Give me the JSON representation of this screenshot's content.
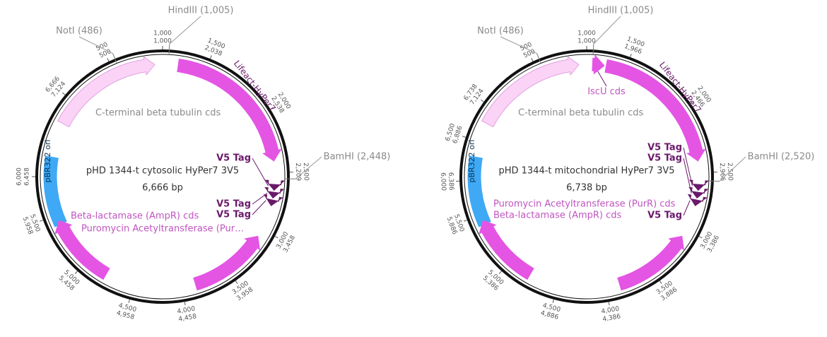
{
  "maps": [
    {
      "name": "pHD 1344-t cytosolic HyPer7 3V5",
      "size": "6,666 bp",
      "sites": [
        "HindIII (1,005)",
        "NotI (486)",
        "BamHI (2,448)"
      ],
      "features": [
        "Lifeact-HyPer7",
        "C-terminal beta tubulin cds",
        "pBR322 ori",
        "V5 Tag",
        "V5 Tag",
        "V5 Tag",
        "Beta-lactamase (AmpR) cds",
        "Puromycin Acetyltransferase (Pur…"
      ],
      "ticks": [
        "1,000",
        "1,000",
        "500",
        "500",
        "1,500",
        "2,038",
        "2,000",
        "2,538",
        "2,500",
        "2,209",
        "3,458",
        "3,000",
        "3,958",
        "3,500",
        "4,458",
        "4,000",
        "4,958",
        "4,500",
        "5,458",
        "5,000",
        "5,958",
        "5,500",
        "6,000",
        "6,458",
        "6,666",
        "7,124"
      ]
    },
    {
      "name": "pHD 1344-t mitochondrial HyPer7 3V5",
      "size": "6,738 bp",
      "sites": [
        "HindIII (1,005)",
        "NotI (486)",
        "BamHI (2,520)"
      ],
      "features": [
        "IscU cds",
        "Lifeact-HyPer7",
        "C-terminal beta tubulin cds",
        "pBR322 ori",
        "V5 Tag",
        "V5 Tag",
        "V5 Tag",
        "Puromycin Acetyltransferase (PurR) cds",
        "Beta-lactamase (AmpR) cds"
      ],
      "ticks": [
        "1,000",
        "1,000",
        "500",
        "500",
        "1,500",
        "1,966",
        "2,000",
        "2,466",
        "2,500",
        "2,966",
        "3,386",
        "3,000",
        "3,886",
        "3,500",
        "4,386",
        "4,000",
        "4,886",
        "4,500",
        "5,386",
        "5,000",
        "5,886",
        "5,500",
        "6,000",
        "6,386",
        "6,500",
        "6,886",
        "6,738",
        "7,124"
      ]
    }
  ]
}
